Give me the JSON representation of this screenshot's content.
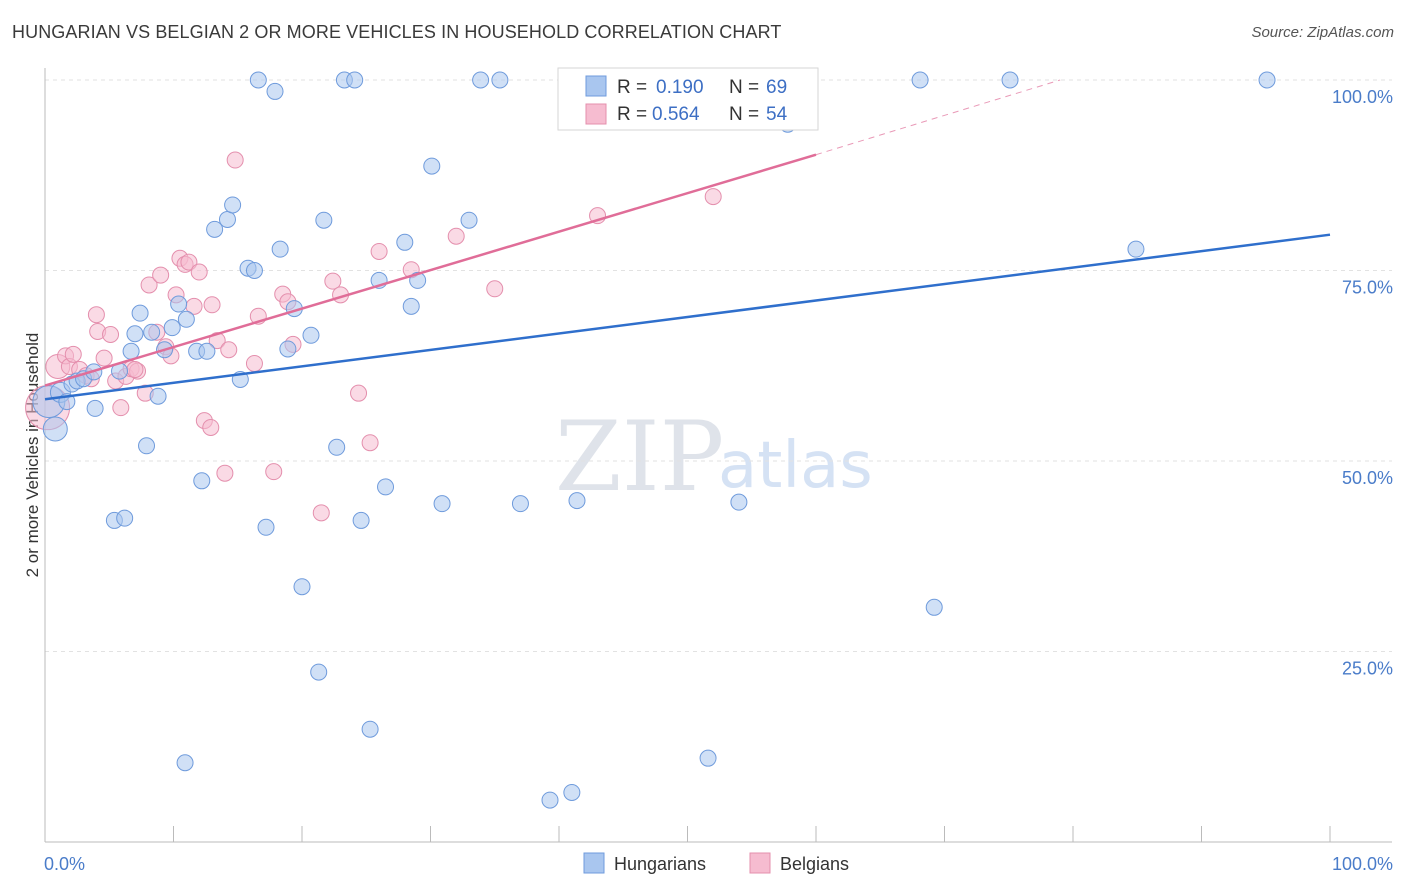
{
  "title": "HUNGARIAN VS BELGIAN 2 OR MORE VEHICLES IN HOUSEHOLD CORRELATION CHART",
  "source": "Source: ZipAtlas.com",
  "watermark": {
    "zip": "ZIP",
    "atlas": "atlas"
  },
  "legend": {
    "r_label": "R =",
    "n_label": "N =",
    "rows": [
      {
        "series": "Hungarians",
        "r": "0.190",
        "n": "69"
      },
      {
        "series": "Belgians",
        "r": "0.564",
        "n": "54"
      }
    ]
  },
  "chart_data": {
    "type": "scatter",
    "title": "HUNGARIAN VS BELGIAN 2 OR MORE VEHICLES IN HOUSEHOLD CORRELATION CHART",
    "xlabel": "",
    "ylabel": "2 or more Vehicles in Household",
    "xlim": [
      0,
      100
    ],
    "ylim": [
      0,
      100
    ],
    "x_tick_labels": [
      "0.0%",
      "100.0%"
    ],
    "y_ticks": [
      25,
      50,
      75,
      100
    ],
    "y_tick_labels": [
      "25.0%",
      "50.0%",
      "75.0%",
      "100.0%"
    ],
    "grid": true,
    "legend_position": "top-center",
    "colors": {
      "Hungarians": {
        "fill": "#a9c6ef",
        "stroke": "#6f9bdc",
        "line": "#2f6fcc"
      },
      "Belgians": {
        "fill": "#f6bcd0",
        "stroke": "#e48fad",
        "line": "#e06d98"
      }
    },
    "series": [
      {
        "name": "Hungarians",
        "r": 0.19,
        "n": 69,
        "trend": {
          "x": [
            0,
            100
          ],
          "y": [
            58.1,
            79.7
          ]
        },
        "points": [
          [
            0.3,
            57.8,
            16
          ],
          [
            0.8,
            54.2,
            12
          ],
          [
            1.2,
            59.0,
            10
          ],
          [
            1.7,
            57.8,
            8
          ],
          [
            2.1,
            60.1,
            8
          ],
          [
            2.5,
            60.5,
            8
          ],
          [
            3.0,
            60.8,
            8
          ],
          [
            3.9,
            56.9,
            8
          ],
          [
            5.4,
            42.2,
            8
          ],
          [
            6.2,
            42.5,
            8
          ],
          [
            5.8,
            61.8,
            8
          ],
          [
            6.7,
            64.4,
            8
          ],
          [
            7.0,
            66.7,
            8
          ],
          [
            7.4,
            69.4,
            8
          ],
          [
            7.9,
            52.0,
            8
          ],
          [
            8.3,
            66.9,
            8
          ],
          [
            8.8,
            58.5,
            8
          ],
          [
            9.3,
            64.6,
            8
          ],
          [
            9.9,
            67.5,
            8
          ],
          [
            10.4,
            70.6,
            8
          ],
          [
            11.0,
            68.6,
            8
          ],
          [
            11.8,
            64.4,
            8
          ],
          [
            12.6,
            64.4,
            8
          ],
          [
            13.2,
            80.4,
            8
          ],
          [
            14.2,
            81.7,
            8
          ],
          [
            14.6,
            83.6,
            8
          ],
          [
            15.2,
            60.7,
            8
          ],
          [
            15.8,
            75.3,
            8
          ],
          [
            16.6,
            100.0,
            8
          ],
          [
            17.2,
            41.3,
            8
          ],
          [
            17.9,
            98.5,
            8
          ],
          [
            18.3,
            77.8,
            8
          ],
          [
            18.9,
            64.7,
            8
          ],
          [
            19.4,
            70.0,
            8
          ],
          [
            20.0,
            33.5,
            8
          ],
          [
            20.7,
            66.5,
            8
          ],
          [
            21.3,
            22.3,
            8
          ],
          [
            21.7,
            81.6,
            8
          ],
          [
            22.7,
            51.8,
            8
          ],
          [
            23.3,
            100.0,
            8
          ],
          [
            24.1,
            100.0,
            8
          ],
          [
            24.6,
            42.2,
            8
          ],
          [
            25.3,
            14.8,
            8
          ],
          [
            26.0,
            73.7,
            8
          ],
          [
            26.5,
            46.6,
            8
          ],
          [
            28.0,
            78.7,
            8
          ],
          [
            28.5,
            70.3,
            8
          ],
          [
            29.0,
            73.7,
            8
          ],
          [
            30.1,
            88.7,
            8
          ],
          [
            30.9,
            44.4,
            8
          ],
          [
            33.0,
            81.6,
            8
          ],
          [
            33.9,
            100.0,
            8
          ],
          [
            35.4,
            100.0,
            8
          ],
          [
            37.0,
            44.4,
            8
          ],
          [
            39.3,
            5.5,
            8
          ],
          [
            41.0,
            6.5,
            8
          ],
          [
            41.4,
            44.8,
            8
          ],
          [
            51.6,
            11.0,
            8
          ],
          [
            54.0,
            44.6,
            8
          ],
          [
            57.8,
            94.2,
            8
          ],
          [
            68.1,
            100.0,
            8
          ],
          [
            69.2,
            30.8,
            8
          ],
          [
            75.1,
            100.0,
            8
          ],
          [
            12.2,
            47.4,
            8
          ],
          [
            10.9,
            10.4,
            8
          ],
          [
            16.3,
            75.0,
            8
          ],
          [
            3.8,
            61.7,
            8
          ],
          [
            84.9,
            77.8,
            8
          ],
          [
            95.1,
            100.0,
            8
          ]
        ]
      },
      {
        "name": "Belgians",
        "r": 0.564,
        "n": 54,
        "trend": {
          "x": [
            0,
            60
          ],
          "y": [
            59.9,
            90.2
          ]
        },
        "trend_dashed": {
          "x": [
            60,
            79
          ],
          "y": [
            90.2,
            100.0
          ]
        },
        "points": [
          [
            0.2,
            57.0,
            22
          ],
          [
            1.0,
            62.4,
            12
          ],
          [
            1.6,
            63.8,
            8
          ],
          [
            1.9,
            62.4,
            8
          ],
          [
            2.2,
            64.0,
            8
          ],
          [
            2.7,
            62.0,
            8
          ],
          [
            3.2,
            61.2,
            8
          ],
          [
            3.6,
            60.8,
            8
          ],
          [
            4.0,
            69.2,
            8
          ],
          [
            4.1,
            67.0,
            8
          ],
          [
            4.6,
            63.5,
            8
          ],
          [
            5.1,
            66.6,
            8
          ],
          [
            5.5,
            60.5,
            8
          ],
          [
            5.9,
            57.0,
            8
          ],
          [
            6.3,
            61.1,
            8
          ],
          [
            6.7,
            62.1,
            8
          ],
          [
            7.2,
            61.8,
            8
          ],
          [
            7.8,
            58.9,
            8
          ],
          [
            8.1,
            73.1,
            8
          ],
          [
            8.7,
            66.9,
            8
          ],
          [
            9.0,
            74.4,
            8
          ],
          [
            9.4,
            65.0,
            8
          ],
          [
            9.8,
            63.8,
            8
          ],
          [
            10.2,
            71.8,
            8
          ],
          [
            10.5,
            76.6,
            8
          ],
          [
            10.9,
            75.8,
            8
          ],
          [
            11.2,
            76.1,
            8
          ],
          [
            11.6,
            70.3,
            8
          ],
          [
            12.0,
            74.8,
            8
          ],
          [
            12.4,
            55.3,
            8
          ],
          [
            12.9,
            54.4,
            8
          ],
          [
            13.4,
            65.8,
            8
          ],
          [
            14.0,
            48.4,
            8
          ],
          [
            14.3,
            64.6,
            8
          ],
          [
            14.8,
            89.5,
            8
          ],
          [
            16.3,
            62.8,
            8
          ],
          [
            16.6,
            69.0,
            8
          ],
          [
            17.8,
            48.6,
            8
          ],
          [
            18.5,
            71.9,
            8
          ],
          [
            18.9,
            70.9,
            8
          ],
          [
            19.3,
            65.3,
            8
          ],
          [
            21.5,
            43.2,
            8
          ],
          [
            22.4,
            73.6,
            8
          ],
          [
            23.0,
            71.8,
            8
          ],
          [
            24.4,
            58.9,
            8
          ],
          [
            25.3,
            52.4,
            8
          ],
          [
            26.0,
            77.5,
            8
          ],
          [
            28.5,
            75.1,
            8
          ],
          [
            32.0,
            79.5,
            8
          ],
          [
            35.0,
            72.6,
            8
          ],
          [
            43.0,
            82.2,
            8
          ],
          [
            52.0,
            84.7,
            8
          ],
          [
            13.0,
            70.5,
            8
          ],
          [
            7.0,
            62.0,
            8
          ]
        ]
      }
    ]
  }
}
